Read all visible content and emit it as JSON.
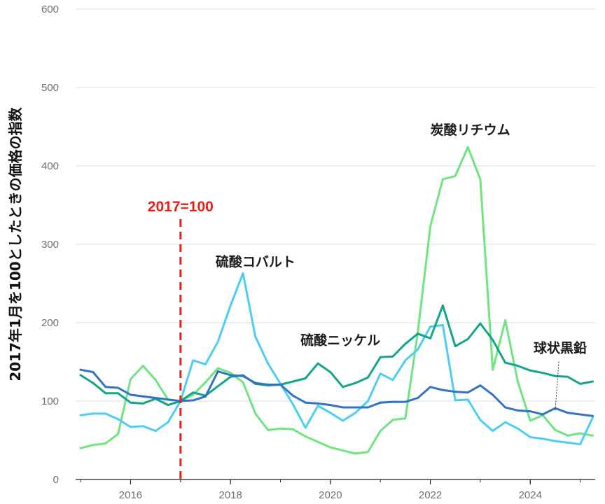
{
  "chart_data": {
    "type": "line",
    "title": "",
    "xlabel": "",
    "ylabel": "2017年1月を100としたときの価格の指数",
    "xlim": [
      2014.9,
      2025.3
    ],
    "ylim": [
      0,
      600
    ],
    "yticks": [
      0,
      100,
      200,
      300,
      400,
      500,
      600
    ],
    "ytick_labels": [
      "0",
      "100",
      "200",
      "300",
      "400",
      "500",
      "600"
    ],
    "xticks": [
      2016,
      2018,
      2020,
      2022,
      2024
    ],
    "xtick_labels": [
      "2016",
      "2018",
      "2020",
      "2022",
      "2024"
    ],
    "grid": "horizontal",
    "reference_line": {
      "x": 2017,
      "label": "2017=100",
      "color": "#e8201c"
    },
    "annotations": [
      {
        "text": "炭酸リチウム",
        "x": 2022.8,
        "y": 440
      },
      {
        "text": "硫酸コバルト",
        "x": 2018.5,
        "y": 272
      },
      {
        "text": "硫酸ニッケル",
        "x": 2020.2,
        "y": 172
      },
      {
        "text": "球状黒鉛",
        "x": 2024.6,
        "y": 162,
        "pointer_to": {
          "x": 2024.5,
          "y": 88
        }
      }
    ],
    "series": [
      {
        "name": "炭酸リチウム",
        "color": "#6fe47f",
        "x": [
          2015.0,
          2015.25,
          2015.5,
          2015.75,
          2016.0,
          2016.25,
          2016.5,
          2016.75,
          2017.0,
          2017.25,
          2017.5,
          2017.75,
          2018.0,
          2018.25,
          2018.5,
          2018.75,
          2019.0,
          2019.25,
          2019.5,
          2019.75,
          2020.0,
          2020.25,
          2020.5,
          2020.75,
          2021.0,
          2021.25,
          2021.5,
          2021.75,
          2022.0,
          2022.25,
          2022.5,
          2022.75,
          2023.0,
          2023.25,
          2023.5,
          2023.75,
          2024.0,
          2024.25,
          2024.5,
          2024.75,
          2025.0,
          2025.25
        ],
        "values": [
          40,
          44,
          46,
          58,
          128,
          145,
          127,
          102,
          100,
          108,
          124,
          142,
          136,
          124,
          84,
          63,
          65,
          64,
          55,
          48,
          41,
          37,
          33,
          35,
          62,
          76,
          78,
          188,
          323,
          383,
          387,
          424,
          383,
          140,
          203,
          125,
          75,
          82,
          63,
          56,
          59,
          56
        ]
      },
      {
        "name": "硫酸コバルト",
        "color": "#4ccdf4",
        "x": [
          2015.0,
          2015.25,
          2015.5,
          2015.75,
          2016.0,
          2016.25,
          2016.5,
          2016.75,
          2017.0,
          2017.25,
          2017.5,
          2017.75,
          2018.0,
          2018.25,
          2018.5,
          2018.75,
          2019.0,
          2019.25,
          2019.5,
          2019.75,
          2020.0,
          2020.25,
          2020.5,
          2020.75,
          2021.0,
          2021.25,
          2021.5,
          2021.75,
          2022.0,
          2022.25,
          2022.5,
          2022.75,
          2023.0,
          2023.25,
          2023.5,
          2023.75,
          2024.0,
          2024.25,
          2024.5,
          2024.75,
          2025.0,
          2025.25
        ],
        "values": [
          82,
          84,
          84,
          77,
          67,
          68,
          62,
          73,
          100,
          152,
          147,
          176,
          222,
          263,
          182,
          148,
          122,
          96,
          66,
          94,
          85,
          75,
          85,
          100,
          135,
          127,
          152,
          166,
          195,
          197,
          101,
          102,
          76,
          62,
          73,
          65,
          54,
          52,
          49,
          47,
          45,
          79
        ]
      },
      {
        "name": "硫酸ニッケル",
        "color": "#12a589",
        "x": [
          2015.0,
          2015.25,
          2015.5,
          2015.75,
          2016.0,
          2016.25,
          2016.5,
          2016.75,
          2017.0,
          2017.25,
          2017.5,
          2017.75,
          2018.0,
          2018.25,
          2018.5,
          2018.75,
          2019.0,
          2019.25,
          2019.5,
          2019.75,
          2020.0,
          2020.25,
          2020.5,
          2020.75,
          2021.0,
          2021.25,
          2021.5,
          2021.75,
          2022.0,
          2022.25,
          2022.5,
          2022.75,
          2023.0,
          2023.25,
          2023.5,
          2023.75,
          2024.0,
          2024.25,
          2024.5,
          2024.75,
          2025.0,
          2025.25
        ],
        "values": [
          133,
          123,
          110,
          110,
          98,
          97,
          103,
          95,
          100,
          111,
          107,
          119,
          131,
          133,
          122,
          120,
          121,
          125,
          129,
          148,
          137,
          118,
          123,
          130,
          156,
          157,
          173,
          186,
          180,
          222,
          170,
          179,
          199,
          178,
          149,
          145,
          139,
          136,
          132,
          131,
          122,
          125
        ]
      },
      {
        "name": "球状黒鉛",
        "color": "#3372c4",
        "x": [
          2015.0,
          2015.25,
          2015.5,
          2015.75,
          2016.0,
          2016.25,
          2016.5,
          2016.75,
          2017.0,
          2017.25,
          2017.5,
          2017.75,
          2018.0,
          2018.25,
          2018.5,
          2018.75,
          2019.0,
          2019.25,
          2019.5,
          2019.75,
          2020.0,
          2020.25,
          2020.5,
          2020.75,
          2021.0,
          2021.25,
          2021.5,
          2021.75,
          2022.0,
          2022.25,
          2022.5,
          2022.75,
          2023.0,
          2023.25,
          2023.5,
          2023.75,
          2024.0,
          2024.25,
          2024.5,
          2024.75,
          2025.0,
          2025.25
        ],
        "values": [
          140,
          137,
          118,
          117,
          108,
          106,
          104,
          102,
          100,
          101,
          106,
          138,
          133,
          132,
          123,
          121,
          121,
          107,
          98,
          97,
          95,
          92,
          92,
          92,
          98,
          99,
          99,
          104,
          118,
          114,
          112,
          111,
          120,
          108,
          92,
          88,
          87,
          83,
          91,
          85,
          83,
          81
        ]
      }
    ]
  }
}
